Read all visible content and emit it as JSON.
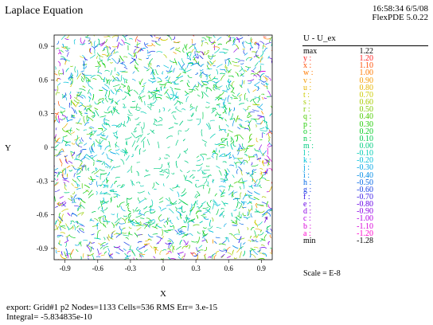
{
  "title": "Laplace Equation",
  "stamp": {
    "time_date": "16:58:34 6/5/08",
    "version": "FlexPDE 5.0.22"
  },
  "chart_data": {
    "type": "contour",
    "title": "Laplace Equation",
    "xlabel": "X",
    "ylabel": "Y",
    "xlim": [
      -1.0,
      1.0
    ],
    "ylim": [
      -1.0,
      1.0
    ],
    "x_ticks": [
      "-0.9",
      "-0.6",
      "-0.3",
      "0",
      "0.3",
      "0.6",
      "0.9"
    ],
    "y_ticks": [
      "0.9",
      "0.6",
      "0.3",
      "0",
      "-0.3",
      "-0.6",
      "-0.9"
    ],
    "x_tick_values": [
      -0.9,
      -0.6,
      -0.3,
      0,
      0.3,
      0.6,
      0.9
    ],
    "y_tick_values": [
      0.9,
      0.6,
      0.3,
      0,
      -0.3,
      -0.6,
      -0.9
    ],
    "variable": "U - U_ex",
    "max": 1.22,
    "min": -1.28,
    "levels": [
      {
        "key": "y :",
        "value": 1.2,
        "color": "#ff2020"
      },
      {
        "key": "x :",
        "value": 1.1,
        "color": "#ff4d00"
      },
      {
        "key": "w :",
        "value": 1.0,
        "color": "#ff7a00"
      },
      {
        "key": "v :",
        "value": 0.9,
        "color": "#f59a00"
      },
      {
        "key": "u :",
        "value": 0.8,
        "color": "#e6b400"
      },
      {
        "key": "t :",
        "value": 0.7,
        "color": "#cccc00"
      },
      {
        "key": "s :",
        "value": 0.6,
        "color": "#a8cc00"
      },
      {
        "key": "r :",
        "value": 0.5,
        "color": "#80cc00"
      },
      {
        "key": "q :",
        "value": 0.4,
        "color": "#4dcc00"
      },
      {
        "key": "p :",
        "value": 0.3,
        "color": "#1fcc00"
      },
      {
        "key": "o :",
        "value": 0.2,
        "color": "#00cc1a"
      },
      {
        "key": "n :",
        "value": 0.1,
        "color": "#00cc4d"
      },
      {
        "key": "m :",
        "value": 0.0,
        "color": "#00cc80"
      },
      {
        "key": "l :",
        "value": -0.1,
        "color": "#00ccb3"
      },
      {
        "key": "k :",
        "value": -0.2,
        "color": "#00c0d9"
      },
      {
        "key": "j :",
        "value": -0.3,
        "color": "#00a6e6"
      },
      {
        "key": "i :",
        "value": -0.4,
        "color": "#008ce6"
      },
      {
        "key": "h :",
        "value": -0.5,
        "color": "#0066e6"
      },
      {
        "key": "g :",
        "value": -0.6,
        "color": "#1a40e6"
      },
      {
        "key": "f :",
        "value": -0.7,
        "color": "#3a1ae6"
      },
      {
        "key": "e :",
        "value": -0.8,
        "color": "#6600e6"
      },
      {
        "key": "d :",
        "value": -0.9,
        "color": "#8c00e6"
      },
      {
        "key": "c :",
        "value": -1.0,
        "color": "#b300e6"
      },
      {
        "key": "b :",
        "value": -1.1,
        "color": "#d900d9"
      },
      {
        "key": "a :",
        "value": -1.2,
        "color": "#ff00cc"
      }
    ],
    "scale": "Scale = E-8"
  },
  "legend": {
    "header": "U - U_ex",
    "max_label": "max",
    "max_value": "1.22",
    "min_label": "min",
    "min_value": "-1.28"
  },
  "footer": {
    "line1": "export:  Grid#1  p2  Nodes=1133 Cells=536 RMS Err= 3.e-15",
    "line2": "Integral= -5.834835e-10"
  }
}
